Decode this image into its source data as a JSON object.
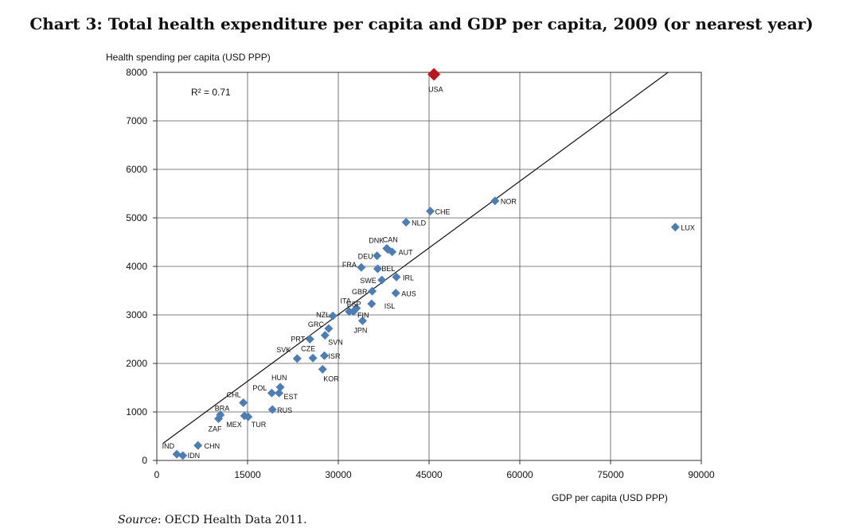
{
  "title": "Chart 3: Total health expenditure per capita and GDP per capita, 2009 (or nearest year)",
  "source_label": "Source",
  "source_text": ": OECD Health Data 2011.",
  "chart_data": {
    "type": "scatter",
    "xlabel": "GDP per capita (USD PPP)",
    "ylabel": "Health spending per capita (USD PPP)",
    "xlim": [
      0,
      90000
    ],
    "ylim": [
      0,
      8000
    ],
    "xticks": [
      0,
      15000,
      30000,
      45000,
      60000,
      75000,
      90000
    ],
    "yticks": [
      0,
      1000,
      2000,
      3000,
      4000,
      5000,
      6000,
      7000,
      8000
    ],
    "grid": true,
    "annotation": "R² = 0.71",
    "trendline": {
      "x": [
        1000,
        84500
      ],
      "y": [
        350,
        8000
      ]
    },
    "point_color": "#4a7ebb",
    "highlight_color": "#c0141b",
    "points": [
      {
        "label": "USA",
        "x": 45800,
        "y": 7960,
        "highlight": true
      },
      {
        "label": "LUX",
        "x": 85700,
        "y": 4810
      },
      {
        "label": "NOR",
        "x": 55900,
        "y": 5350
      },
      {
        "label": "CHE",
        "x": 45200,
        "y": 5140
      },
      {
        "label": "NLD",
        "x": 41200,
        "y": 4910
      },
      {
        "label": "CAN",
        "x": 38000,
        "y": 4370
      },
      {
        "label": "DNK",
        "x": 38200,
        "y": 4350
      },
      {
        "label": "AUT",
        "x": 38900,
        "y": 4300
      },
      {
        "label": "DEU",
        "x": 36400,
        "y": 4220
      },
      {
        "label": "FRA",
        "x": 33800,
        "y": 3980
      },
      {
        "label": "BEL",
        "x": 36500,
        "y": 3950
      },
      {
        "label": "IRL",
        "x": 39600,
        "y": 3780
      },
      {
        "label": "SWE",
        "x": 37200,
        "y": 3720
      },
      {
        "label": "GBR",
        "x": 35600,
        "y": 3490
      },
      {
        "label": "AUS",
        "x": 39500,
        "y": 3450
      },
      {
        "label": "ISL",
        "x": 35500,
        "y": 3230
      },
      {
        "label": "ITA",
        "x": 33000,
        "y": 3140
      },
      {
        "label": "FIN",
        "x": 32500,
        "y": 3070
      },
      {
        "label": "ESP",
        "x": 31800,
        "y": 3070
      },
      {
        "label": "NZL",
        "x": 29100,
        "y": 2980
      },
      {
        "label": "JPN",
        "x": 34000,
        "y": 2880
      },
      {
        "label": "GRC",
        "x": 28400,
        "y": 2720
      },
      {
        "label": "SVN",
        "x": 27800,
        "y": 2580
      },
      {
        "label": "PRT",
        "x": 25300,
        "y": 2500
      },
      {
        "label": "CZE",
        "x": 25800,
        "y": 2110
      },
      {
        "label": "ISR",
        "x": 27700,
        "y": 2160
      },
      {
        "label": "SVK",
        "x": 23200,
        "y": 2100
      },
      {
        "label": "KOR",
        "x": 27400,
        "y": 1880
      },
      {
        "label": "HUN",
        "x": 20400,
        "y": 1510
      },
      {
        "label": "POL",
        "x": 19000,
        "y": 1390
      },
      {
        "label": "EST",
        "x": 20200,
        "y": 1390
      },
      {
        "label": "CHL",
        "x": 14300,
        "y": 1190
      },
      {
        "label": "RUS",
        "x": 19100,
        "y": 1050
      },
      {
        "label": "BRA",
        "x": 10500,
        "y": 940
      },
      {
        "label": "MEX",
        "x": 14500,
        "y": 920
      },
      {
        "label": "TUR",
        "x": 15100,
        "y": 900
      },
      {
        "label": "ZAF",
        "x": 10200,
        "y": 860
      },
      {
        "label": "CHN",
        "x": 6800,
        "y": 310
      },
      {
        "label": "IND",
        "x": 3300,
        "y": 130
      },
      {
        "label": "IDN",
        "x": 4300,
        "y": 100
      }
    ]
  }
}
